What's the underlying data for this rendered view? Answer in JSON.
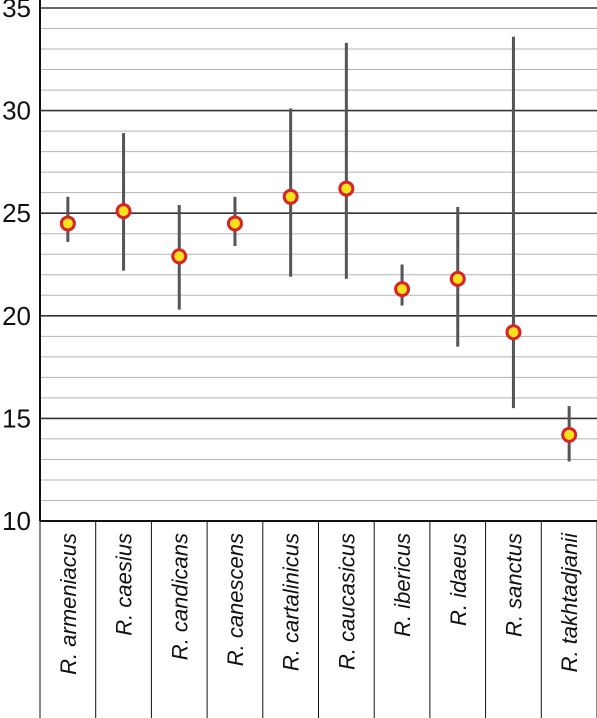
{
  "chart_data": {
    "type": "scatter",
    "title": "",
    "xlabel": "",
    "ylabel": "",
    "ylim": [
      10,
      35
    ],
    "yticks": [
      "10",
      "15",
      "20",
      "25",
      "30",
      "35"
    ],
    "minor_grid_step": 1,
    "grid": true,
    "categories": [
      "R. armeniacus",
      "R. caesius",
      "R. candicans",
      "R. canescens",
      "R. cartalinicus",
      "R. caucasicus",
      "R. ibericus",
      "R. idaeus",
      "R. sanctus",
      "R. takhtadjanii"
    ],
    "series": [
      {
        "mean": [
          24.5,
          25.1,
          22.9,
          24.5,
          25.8,
          26.2,
          21.3,
          21.8,
          19.2,
          14.2
        ],
        "min": [
          23.6,
          22.2,
          20.3,
          23.4,
          21.9,
          21.8,
          20.5,
          18.5,
          15.5,
          12.9
        ],
        "max": [
          25.8,
          28.9,
          25.4,
          25.8,
          30.1,
          33.3,
          22.5,
          25.3,
          33.6,
          15.6
        ]
      }
    ],
    "colors": {
      "marker_fill": "#f7e31a",
      "marker_edge": "#d9222a",
      "range_line": "#555555",
      "major_grid": "#333333",
      "minor_grid": "#b5b5b5",
      "axis": "#111111"
    }
  }
}
